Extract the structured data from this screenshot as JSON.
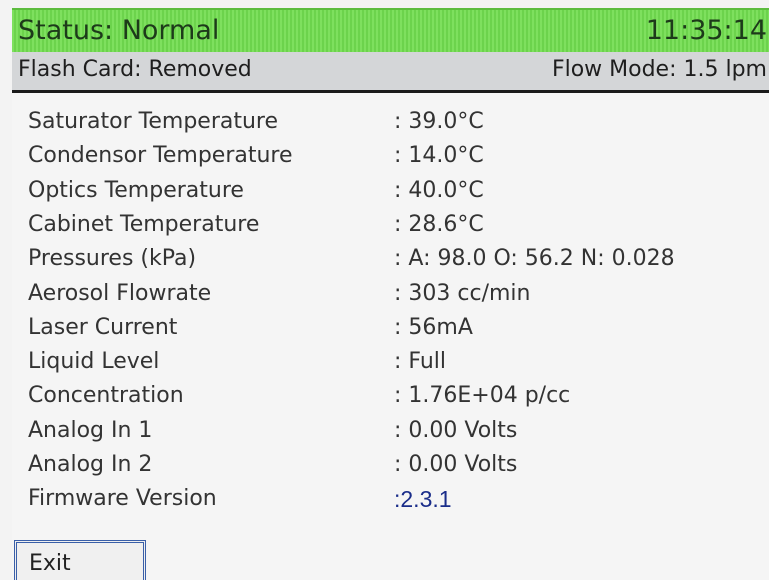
{
  "header": {
    "status": "Status: Normal",
    "time": "11:35:14"
  },
  "subheader": {
    "flash_card": "Flash Card: Removed",
    "flow_mode": "Flow Mode: 1.5 lpm"
  },
  "rows": [
    {
      "label": "Saturator Temperature",
      "value": ": 39.0°C"
    },
    {
      "label": "Condensor Temperature",
      "value": ": 14.0°C"
    },
    {
      "label": "Optics Temperature",
      "value": ": 40.0°C"
    },
    {
      "label": "Cabinet Temperature",
      "value": ": 28.6°C"
    },
    {
      "label": "Pressures (kPa)",
      "value": ": A: 98.0 O: 56.2 N: 0.028"
    },
    {
      "label": "Aerosol Flowrate",
      "value": ": 303  cc/min"
    },
    {
      "label": "Laser Current",
      "value": ": 56mA"
    },
    {
      "label": "Liquid Level",
      "value": ": Full"
    },
    {
      "label": "Concentration",
      "value": ": 1.76E+04 p/cc"
    },
    {
      "label": "Analog In 1",
      "value": ": 0.00 Volts"
    },
    {
      "label": "Analog In 2",
      "value": ": 0.00 Volts"
    },
    {
      "label": "Firmware Version",
      "value": ":2.3.1"
    }
  ],
  "button": "Exit"
}
